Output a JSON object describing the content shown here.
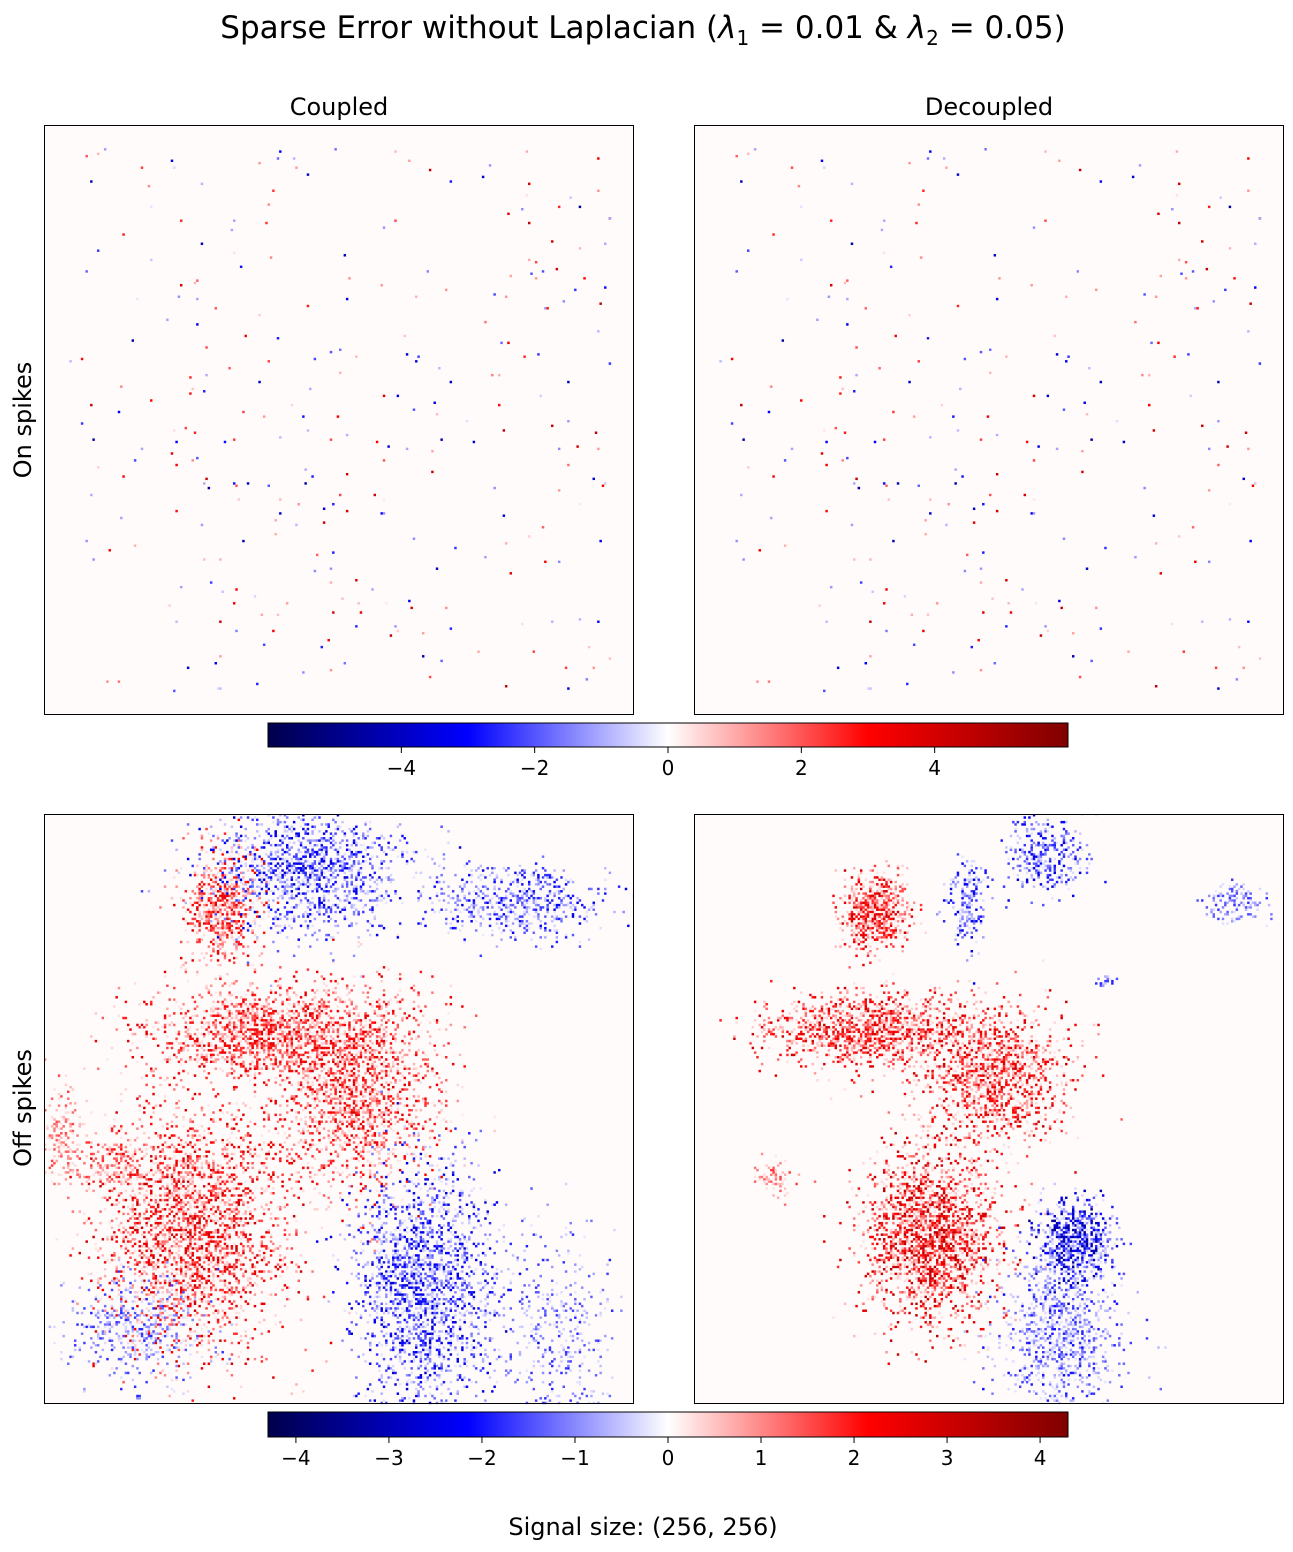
{
  "figure": {
    "title": "Sparse Error without Laplacian (",
    "title_lambda1": "λ",
    "title_sub1": "1",
    "title_eq1": " = 0.01 & ",
    "title_lambda2": "λ",
    "title_sub2": "2",
    "title_eq2": " = 0.05)",
    "footer": "Signal size: (256, 256)",
    "col_titles": [
      "Coupled",
      "Decoupled"
    ],
    "row_labels": [
      "On spikes",
      "Off spikes"
    ]
  },
  "colors": {
    "cmap": [
      "#00004c",
      "#0000ff",
      "#ffffff",
      "#ff0000",
      "#800000"
    ],
    "background": "#fffbfb"
  },
  "chart_data": [
    {
      "type": "heatmap",
      "title": "Coupled",
      "row": "On spikes",
      "signal_size": [
        256,
        256
      ],
      "cmap": "seismic",
      "vmin": -6,
      "vmax": 6,
      "xticks": [],
      "yticks": [],
      "pattern": "sparse isolated spikes (~300), positive and negative, uniformly scattered",
      "seed": 11
    },
    {
      "type": "heatmap",
      "title": "Decoupled",
      "row": "On spikes",
      "signal_size": [
        256,
        256
      ],
      "cmap": "seismic",
      "vmin": -6,
      "vmax": 6,
      "xticks": [],
      "yticks": [],
      "pattern": "sparse isolated spikes (~300), nearly identical to Coupled",
      "seed": 11
    },
    {
      "type": "heatmap",
      "title": "",
      "row": "Off spikes",
      "signal_size": [
        256,
        256
      ],
      "cmap": "seismic",
      "vmin": -4.3,
      "vmax": 4.3,
      "xticks": [],
      "yticks": [],
      "pattern": "dense clustered blobs: red clusters upper-left/center, blue clusters top-center and bottom-center"
    },
    {
      "type": "heatmap",
      "title": "",
      "row": "Off spikes",
      "signal_size": [
        256,
        256
      ],
      "cmap": "seismic",
      "vmin": -4.3,
      "vmax": 4.3,
      "xticks": [],
      "yticks": [],
      "pattern": "smaller, tighter clustered blobs at similar locations as Coupled"
    }
  ],
  "colorbars": [
    {
      "vmin": -6,
      "vmax": 6,
      "ticks": [
        -4,
        -2,
        0,
        2,
        4
      ],
      "tick_labels": [
        "−4",
        "−2",
        "0",
        "2",
        "4"
      ]
    },
    {
      "vmin": -4.3,
      "vmax": 4.3,
      "ticks": [
        -4,
        -3,
        -2,
        -1,
        0,
        1,
        2,
        3,
        4
      ],
      "tick_labels": [
        "−4",
        "−3",
        "−2",
        "−1",
        "0",
        "1",
        "2",
        "3",
        "4"
      ]
    }
  ]
}
